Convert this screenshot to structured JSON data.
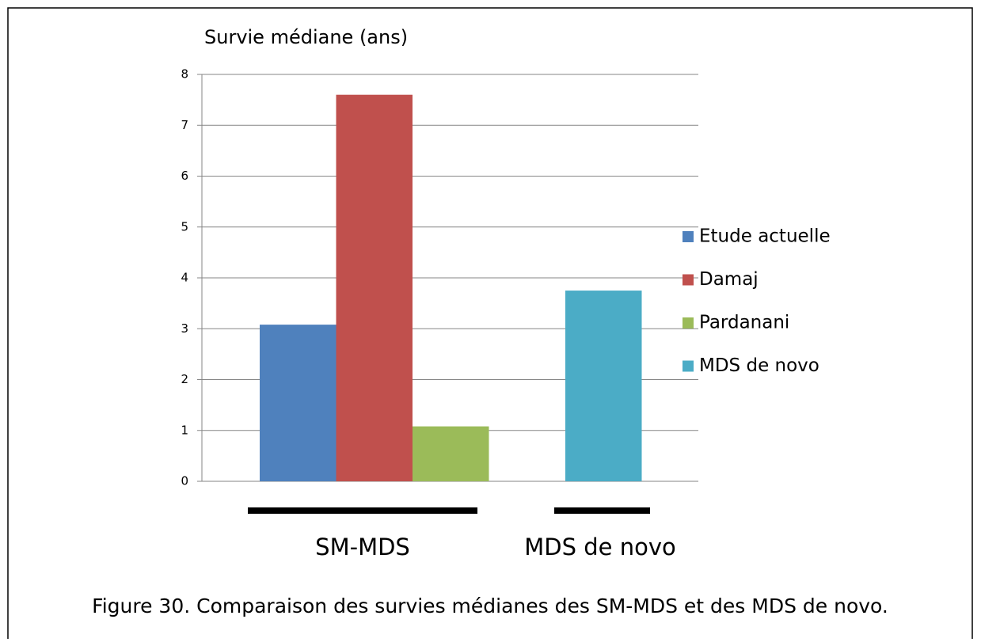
{
  "chart_data": {
    "type": "bar",
    "title": "Survie médiane (ans)",
    "categories": [
      "SM-MDS",
      "MDS de novo"
    ],
    "series": [
      {
        "name": "Etude actuelle",
        "color": "#4f81bd",
        "values": [
          3.08,
          null
        ]
      },
      {
        "name": "Damaj",
        "color": "#c0504d",
        "values": [
          7.6,
          null
        ]
      },
      {
        "name": "Pardanani",
        "color": "#9bbb59",
        "values": [
          1.08,
          null
        ]
      },
      {
        "name": "MDS de novo",
        "color": "#4bacc6",
        "values": [
          null,
          3.75
        ]
      }
    ],
    "ylim": [
      0,
      8
    ],
    "yticks": [
      0,
      1,
      2,
      3,
      4,
      5,
      6,
      7,
      8
    ],
    "grid": true,
    "legend": "right",
    "caption": "Figure 30. Comparaison des survies médianes des SM-MDS et des MDS de novo."
  }
}
